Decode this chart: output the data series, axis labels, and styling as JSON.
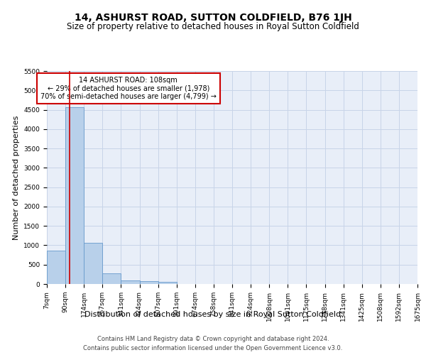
{
  "title": "14, ASHURST ROAD, SUTTON COLDFIELD, B76 1JH",
  "subtitle": "Size of property relative to detached houses in Royal Sutton Coldfield",
  "xlabel": "Distribution of detached houses by size in Royal Sutton Coldfield",
  "ylabel": "Number of detached properties",
  "footer_line1": "Contains HM Land Registry data © Crown copyright and database right 2024.",
  "footer_line2": "Contains public sector information licensed under the Open Government Licence v3.0.",
  "bin_labels": [
    "7sqm",
    "90sqm",
    "174sqm",
    "257sqm",
    "341sqm",
    "424sqm",
    "507sqm",
    "591sqm",
    "674sqm",
    "758sqm",
    "841sqm",
    "924sqm",
    "1008sqm",
    "1091sqm",
    "1175sqm",
    "1258sqm",
    "1341sqm",
    "1425sqm",
    "1508sqm",
    "1592sqm",
    "1675sqm"
  ],
  "bar_values": [
    870,
    4560,
    1060,
    275,
    85,
    80,
    50,
    0,
    0,
    0,
    0,
    0,
    0,
    0,
    0,
    0,
    0,
    0,
    0,
    0
  ],
  "bar_color": "#b8d0ea",
  "bar_edge_color": "#6699cc",
  "annotation_text": "14 ASHURST ROAD: 108sqm\n← 29% of detached houses are smaller (1,978)\n70% of semi-detached houses are larger (4,799) →",
  "annotation_box_color": "#ffffff",
  "annotation_border_color": "#cc0000",
  "vline_color": "#cc0000",
  "ylim": [
    0,
    5500
  ],
  "yticks": [
    0,
    500,
    1000,
    1500,
    2000,
    2500,
    3000,
    3500,
    4000,
    4500,
    5000,
    5500
  ],
  "grid_color": "#c8d4e8",
  "background_color": "#e8eef8",
  "title_fontsize": 10,
  "subtitle_fontsize": 8.5,
  "axis_label_fontsize": 8,
  "tick_fontsize": 6.5,
  "footer_fontsize": 6
}
